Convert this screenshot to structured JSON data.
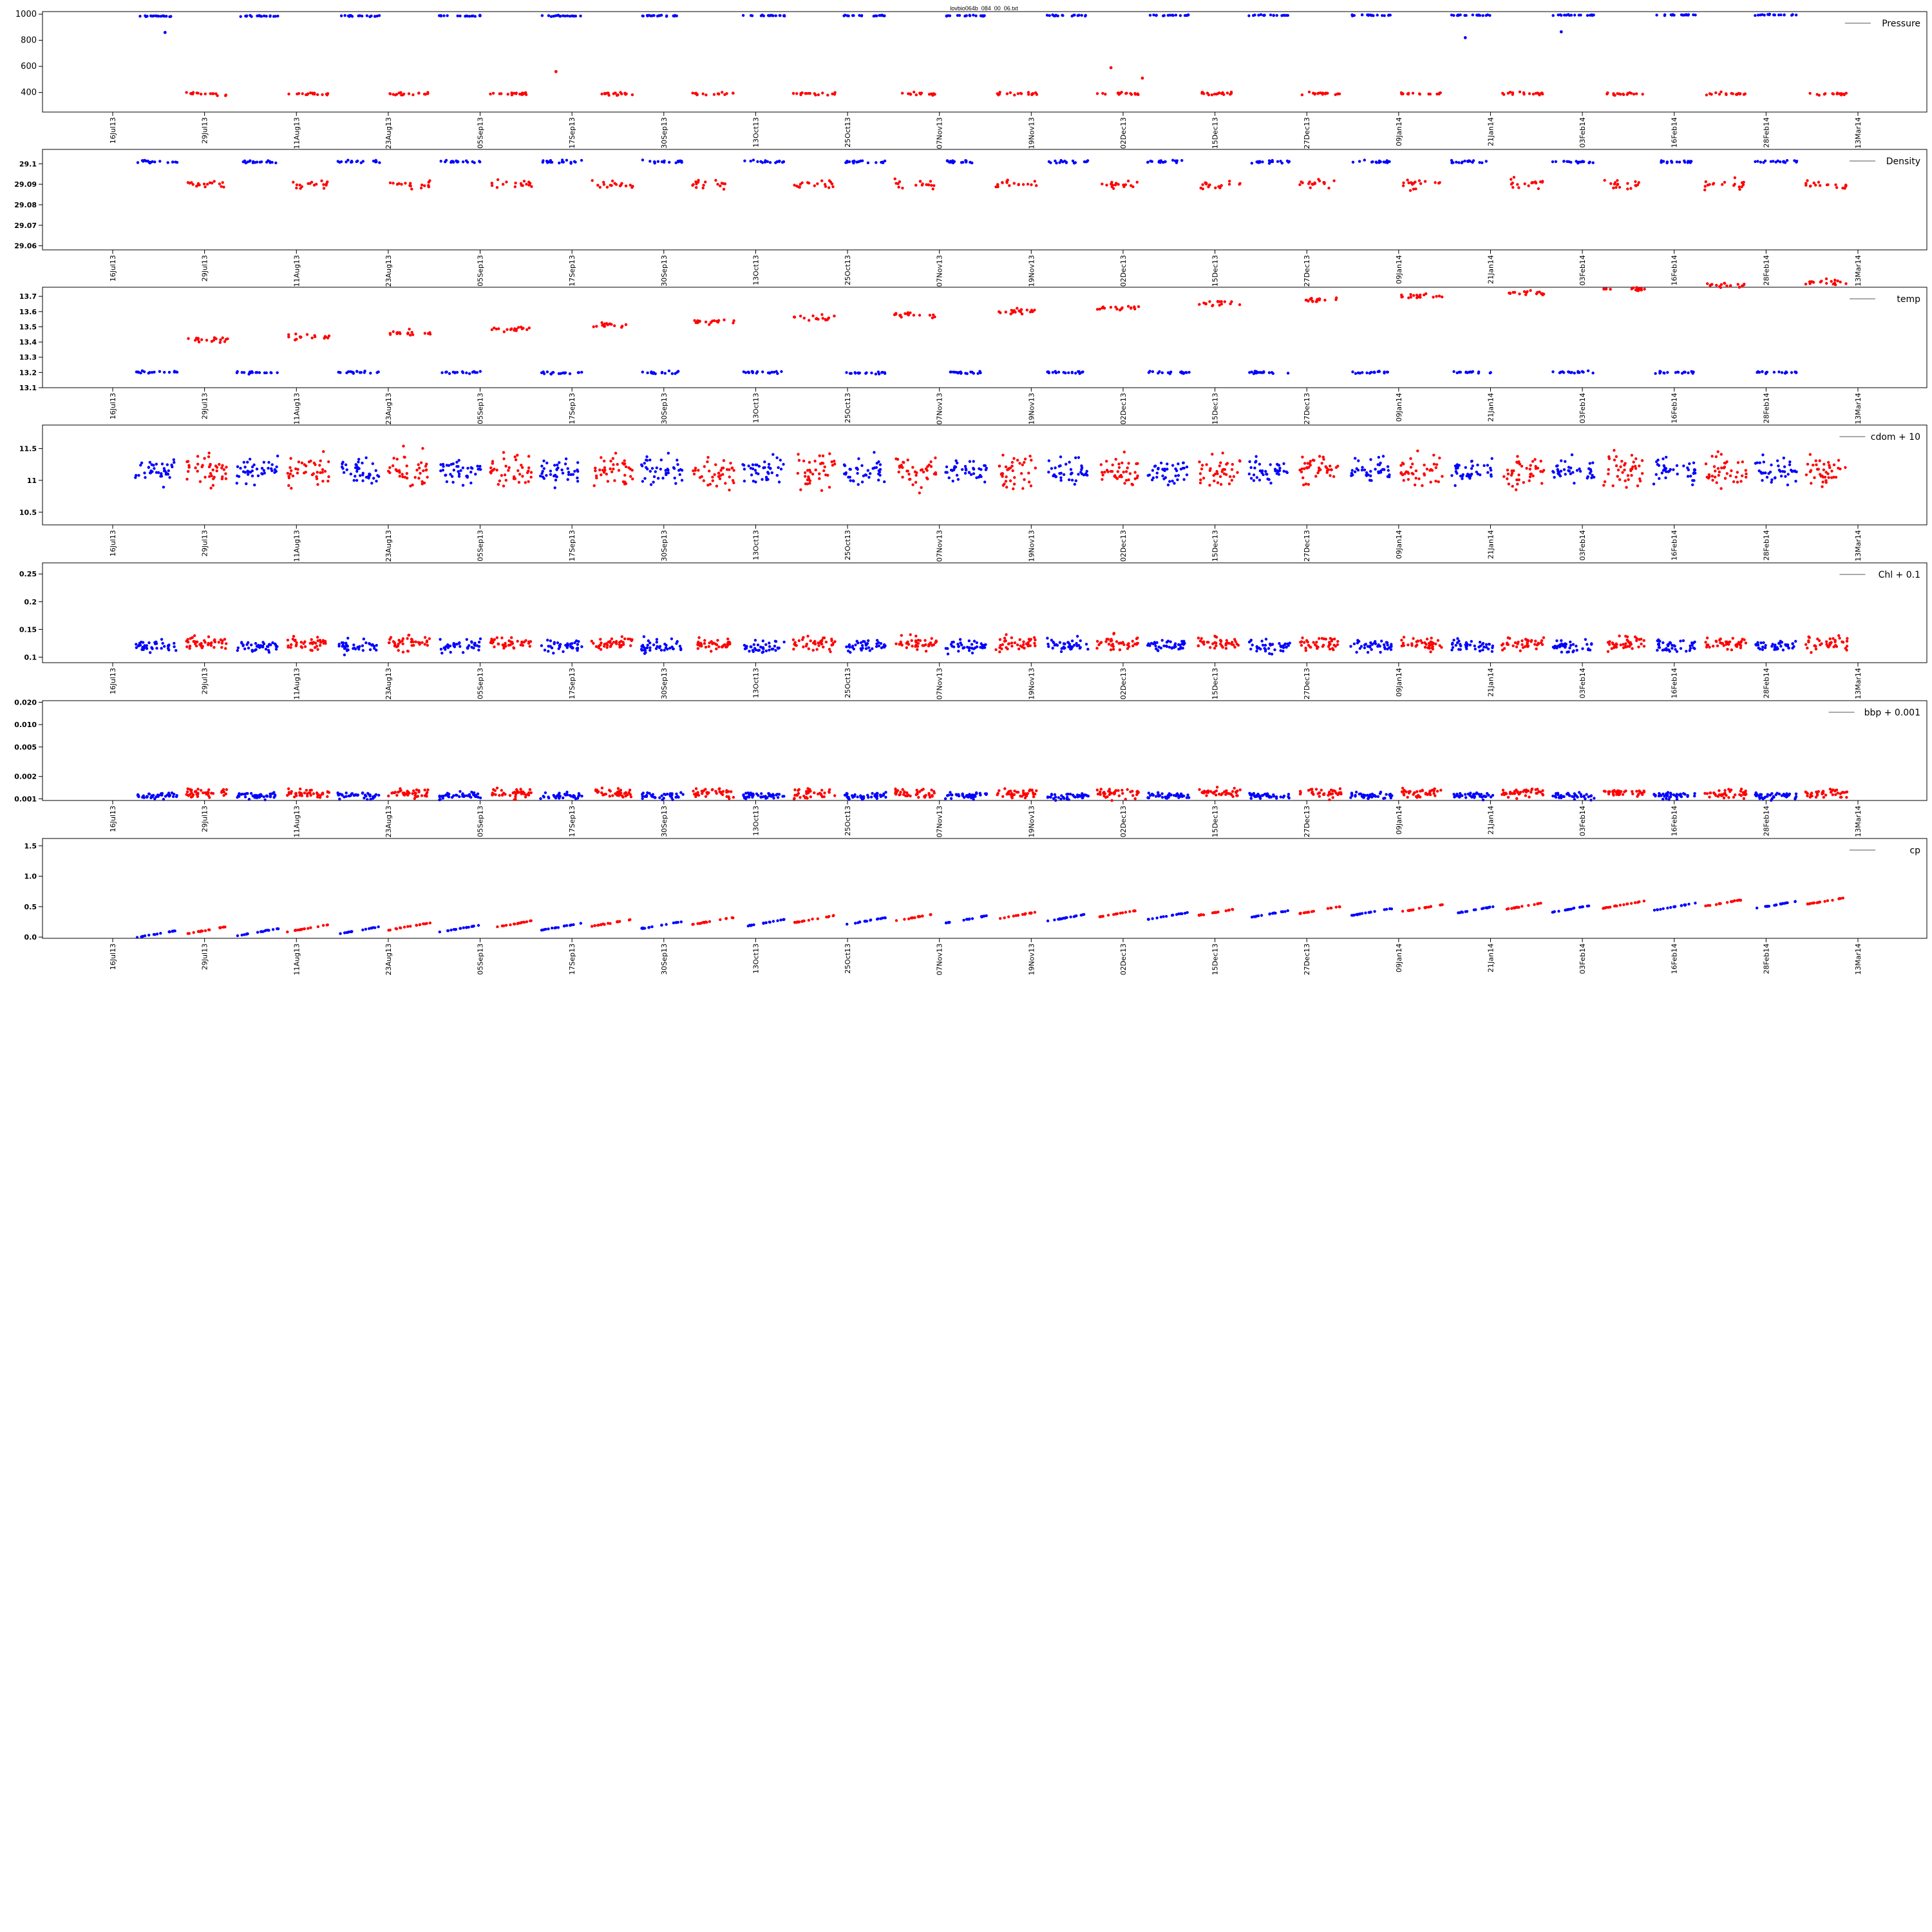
{
  "figure": {
    "title": "lovbio064b_084_00_06.txt"
  },
  "colors": {
    "blue": "#0000ff",
    "red": "#ff0000",
    "axis": "#000000"
  },
  "chart_data": [
    {
      "type": "scatter",
      "legend": "Pressure",
      "yticks": [
        400,
        600,
        800,
        1000
      ],
      "ylim": [
        250,
        1020
      ],
      "xticks": [
        "16Jul13",
        "29Jul13",
        "11Aug13",
        "23Aug13",
        "05Sep13",
        "17Sep13",
        "30Sep13",
        "13Oct13",
        "25Oct13",
        "07Nov13",
        "19Nov13",
        "02Dec13",
        "15Dec13",
        "27Dec13",
        "09Jan14",
        "21Jan14",
        "03Feb14",
        "16Feb14",
        "28Feb14",
        "13Mar14"
      ],
      "series": [
        {
          "color": "blue",
          "pattern": "surface",
          "base": 985,
          "step": 0.3,
          "noise": 8
        },
        {
          "color": "red",
          "pattern": "deep",
          "base": 390,
          "step": 0,
          "noise": 20
        }
      ],
      "outliers": [
        {
          "x": 25.4,
          "y": 560
        },
        {
          "x": 57.2,
          "y": 590
        },
        {
          "x": 59.0,
          "y": 510
        },
        {
          "x": 77.5,
          "y": 820
        },
        {
          "x": 83.0,
          "y": 865
        },
        {
          "x": 3,
          "y": 860
        }
      ]
    },
    {
      "type": "scatter",
      "legend": "Density",
      "yticks": [
        29.06,
        29.07,
        29.08,
        29.09,
        29.1
      ],
      "ylim": [
        29.058,
        29.107
      ],
      "xticks": [
        "16Jul13",
        "29Jul13",
        "11Aug13",
        "23Aug13",
        "05Sep13",
        "17Sep13",
        "30Sep13",
        "13Oct13",
        "25Oct13",
        "07Nov13",
        "19Nov13",
        "02Dec13",
        "15Dec13",
        "27Dec13",
        "09Jan14",
        "21Jan14",
        "03Feb14",
        "16Feb14",
        "28Feb14",
        "13Mar14"
      ],
      "series": [
        {
          "color": "blue",
          "pattern": "surface",
          "base": 29.101,
          "step": 0,
          "noise": 0.0012
        },
        {
          "color": "red",
          "pattern": "deep",
          "base": 29.09,
          "step": 0,
          "noise": 0.004
        }
      ]
    },
    {
      "type": "scatter",
      "legend": "temp",
      "yticks": [
        13.1,
        13.2,
        13.3,
        13.4,
        13.5,
        13.6,
        13.7
      ],
      "ylim": [
        13.1,
        13.76
      ],
      "xticks": [
        "16Jul13",
        "29Jul13",
        "11Aug13",
        "23Aug13",
        "05Sep13",
        "17Sep13",
        "30Sep13",
        "13Oct13",
        "25Oct13",
        "07Nov13",
        "19Nov13",
        "02Dec13",
        "15Dec13",
        "27Dec13",
        "09Jan14",
        "21Jan14",
        "03Feb14",
        "16Feb14",
        "28Feb14",
        "13Mar14"
      ],
      "series": [
        {
          "color": "blue",
          "pattern": "surface",
          "base": 13.2,
          "step": 0,
          "noise": 0.015
        },
        {
          "color": "red",
          "pattern": "deep",
          "base": 13.4,
          "step": 0.012,
          "noise": 0.03
        }
      ]
    },
    {
      "type": "scatter",
      "legend": "cdom + 10",
      "yticks": [
        10.5,
        11.0,
        11.5
      ],
      "ylim": [
        10.3,
        11.87
      ],
      "xticks": [
        "16Jul13",
        "29Jul13",
        "11Aug13",
        "23Aug13",
        "05Sep13",
        "17Sep13",
        "30Sep13",
        "13Oct13",
        "25Oct13",
        "07Nov13",
        "19Nov13",
        "02Dec13",
        "15Dec13",
        "27Dec13",
        "09Jan14",
        "21Jan14",
        "03Feb14",
        "16Feb14",
        "28Feb14",
        "13Mar14"
      ],
      "series": [
        {
          "color": "blue",
          "pattern": "band",
          "base": 11.15,
          "step": 0,
          "noise": 0.35
        },
        {
          "color": "red",
          "pattern": "band",
          "base": 11.15,
          "step": 0,
          "noise": 0.45
        }
      ]
    },
    {
      "type": "scatter",
      "legend": "Chl + 0.1",
      "yticks": [
        0.1,
        0.15,
        0.2,
        0.25
      ],
      "ylim": [
        0.09,
        0.27
      ],
      "xticks": [
        "16Jul13",
        "29Jul13",
        "11Aug13",
        "23Aug13",
        "05Sep13",
        "17Sep13",
        "30Sep13",
        "13Oct13",
        "25Oct13",
        "07Nov13",
        "19Nov13",
        "02Dec13",
        "15Dec13",
        "27Dec13",
        "09Jan14",
        "21Jan14",
        "03Feb14",
        "16Feb14",
        "28Feb14",
        "13Mar14"
      ],
      "series": [
        {
          "color": "blue",
          "pattern": "band",
          "base": 0.12,
          "step": 0,
          "noise": 0.02
        },
        {
          "color": "red",
          "pattern": "band",
          "base": 0.125,
          "step": 0,
          "noise": 0.022
        }
      ]
    },
    {
      "type": "scatter",
      "legend": "bbp + 0.001",
      "log": true,
      "yticks": [
        0.001,
        0.002,
        0.005,
        0.01,
        0.02
      ],
      "ytick_labels": [
        "0.001",
        "0.002",
        "0.005",
        "0.010",
        "0.020"
      ],
      "ylim": [
        0.00095,
        0.021
      ],
      "xticks": [
        "16Jul13",
        "29Jul13",
        "11Aug13",
        "23Aug13",
        "05Sep13",
        "17Sep13",
        "30Sep13",
        "13Oct13",
        "25Oct13",
        "07Nov13",
        "19Nov13",
        "02Dec13",
        "15Dec13",
        "27Dec13",
        "09Jan14",
        "21Jan14",
        "03Feb14",
        "16Feb14",
        "28Feb14",
        "13Mar14"
      ],
      "series": [
        {
          "color": "blue",
          "pattern": "band",
          "base": 0.0011,
          "step": 0,
          "noise": 0.0002
        },
        {
          "color": "red",
          "pattern": "band",
          "base": 0.0012,
          "step": 0,
          "noise": 0.0003
        }
      ]
    },
    {
      "type": "scatter",
      "legend": "cp",
      "yticks": [
        0.0,
        0.5,
        1.0,
        1.5
      ],
      "ytick_labels": [
        "0.0",
        "0.5",
        "1.0",
        "1.5"
      ],
      "ylim": [
        -0.02,
        1.62
      ],
      "xticks": [
        "16Jul13",
        "29Jul13",
        "11Aug13",
        "23Aug13",
        "05Sep13",
        "17Sep13",
        "30Sep13",
        "13Oct13",
        "25Oct13",
        "07Nov13",
        "19Nov13",
        "02Dec13",
        "15Dec13",
        "27Dec13",
        "09Jan14",
        "21Jan14",
        "03Feb14",
        "16Feb14",
        "28Feb14",
        "13Mar14"
      ],
      "series": [
        {
          "color": "blue",
          "pattern": "ramp",
          "base": 0.05,
          "step": 0.015,
          "noise": 0.01
        },
        {
          "color": "red",
          "pattern": "ramp",
          "base": 0.1,
          "step": 0.015,
          "noise": 0.01
        }
      ]
    }
  ]
}
